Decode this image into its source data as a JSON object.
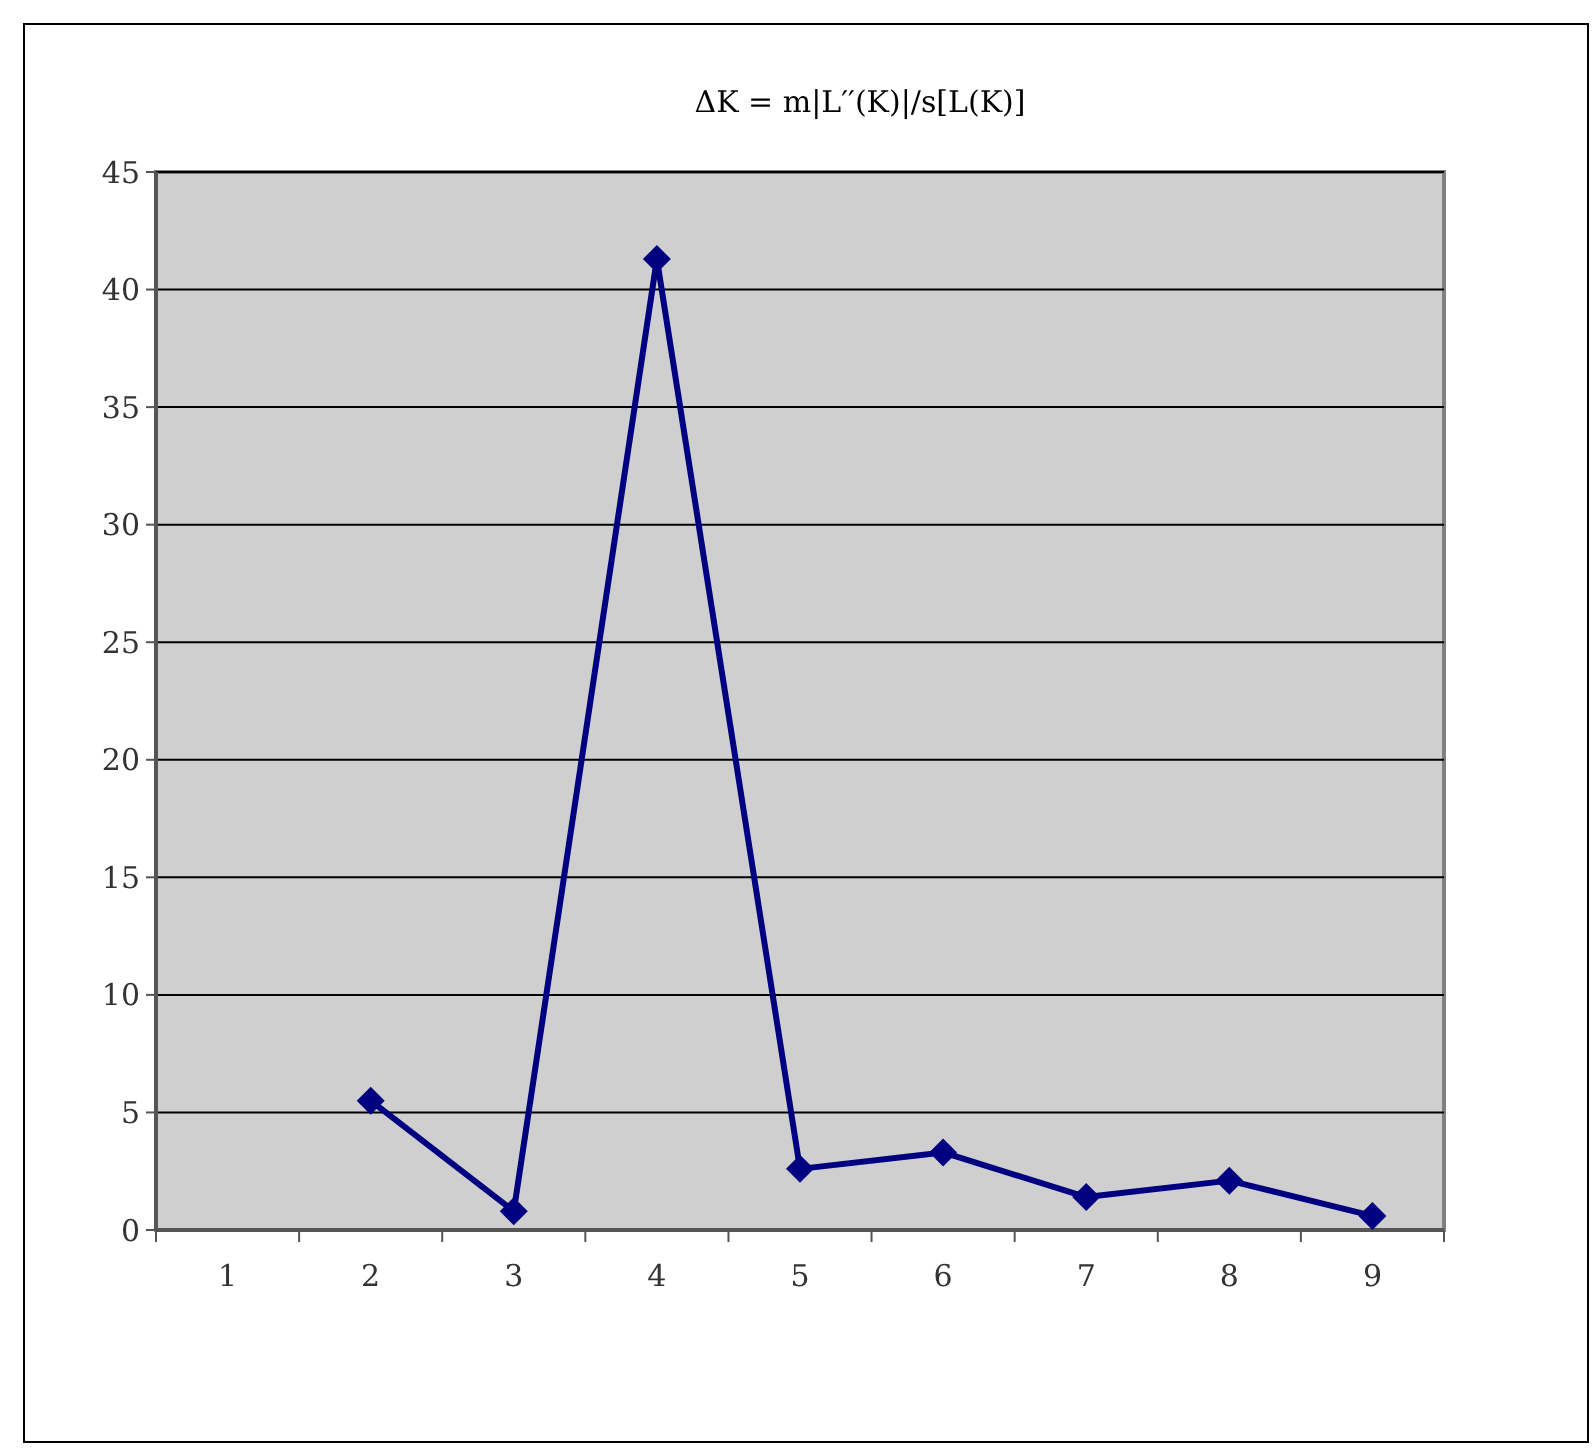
{
  "chart_data": {
    "type": "line",
    "title": "ΔK = m|L′′(K)|/s[L(K)]",
    "categories": [
      "1",
      "2",
      "3",
      "4",
      "5",
      "6",
      "7",
      "8",
      "9"
    ],
    "values": [
      null,
      5.5,
      0.8,
      41.3,
      2.6,
      3.3,
      1.4,
      2.1,
      0.6
    ],
    "color": "#000080",
    "marker": "diamond",
    "line_style": "solid",
    "ylim": [
      0,
      45
    ],
    "yticks": [
      0,
      5,
      10,
      15,
      20,
      25,
      30,
      35,
      40,
      45
    ],
    "grid": "y"
  }
}
